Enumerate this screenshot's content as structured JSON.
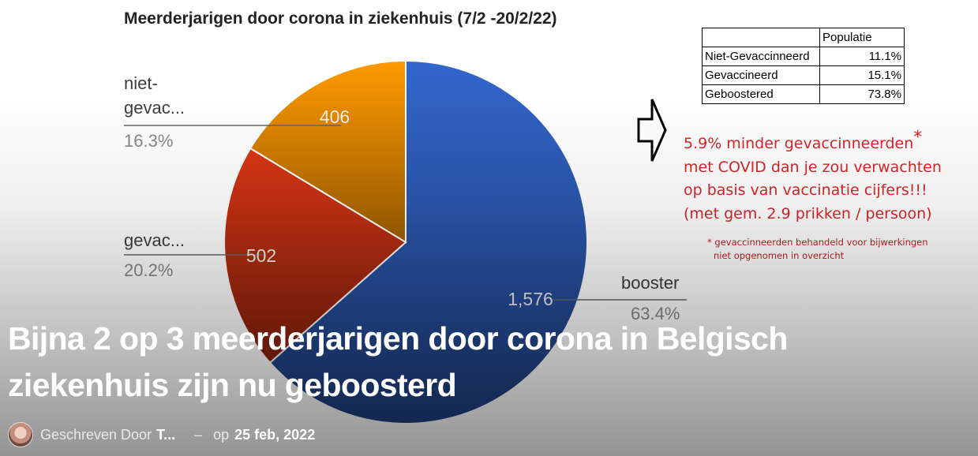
{
  "chart_data": {
    "type": "pie",
    "title": "Meerderjarigen door corona in ziekenhuis (7/2 -20/2/22)",
    "slices": [
      {
        "label": "booster",
        "value": 1576,
        "value_label": "1,576",
        "percent_label": "63.4%",
        "color": "#3266cc"
      },
      {
        "label": "gevac...",
        "value": 502,
        "value_label": "502",
        "percent_label": "20.2%",
        "color": "#d93614"
      },
      {
        "label": "niet-\ngevac...",
        "value": 406,
        "value_label": "406",
        "percent_label": "16.3%",
        "color": "#ff9900"
      }
    ],
    "start_angle_deg": 0,
    "direction": "clockwise",
    "legend": "labels beside slices"
  },
  "population_table": {
    "header": [
      "",
      "Populatie"
    ],
    "rows": [
      {
        "name": "Niet-Gevaccinneerd",
        "value": "11.1%"
      },
      {
        "name": "Gevaccineerd",
        "value": "15.1%"
      },
      {
        "name": "Geboostered",
        "value": "73.8%"
      }
    ]
  },
  "annotation": {
    "lines": [
      "5.9% minder gevaccinneerden",
      "met COVID dan je zou verwachten",
      "op basis van vaccinatie cijfers!!!",
      "(met gem. 2.9 prikken / persoon)"
    ],
    "star": "*",
    "footnote_lines": [
      "* gevaccinneerden behandeld voor bijwerkingen",
      "niet opgenomen in overzicht"
    ],
    "color": "#d9262a",
    "arrow_icon": "right-arrow-outline-icon"
  },
  "article": {
    "headline": "Bijna 2 op 3 meerderjarigen door corona in Belgisch ziekenhuis zijn nu geboosterd",
    "written_by": "Geschreven Door",
    "author": "T...",
    "separator": "–",
    "on": "op",
    "date": "25 feb, 2022",
    "avatar_icon": "author-avatar"
  }
}
